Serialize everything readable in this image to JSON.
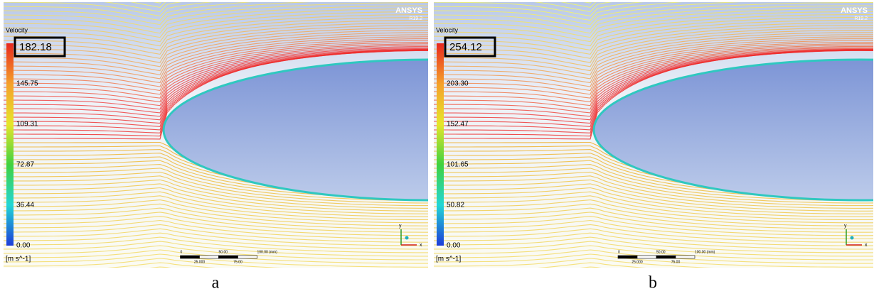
{
  "panels": [
    {
      "legend_title": "Velocity",
      "max_label": "182.18",
      "legend_ticks": [
        "145.75",
        "109.31",
        "72.87",
        "36.44",
        "0.00"
      ],
      "unit": "[m s^-1]",
      "brand": "ANSYS",
      "version": "R19.2",
      "scale_labels_top": [
        "0",
        "50.00",
        "100.00 (mm)"
      ],
      "scale_labels_bottom": [
        "25.000",
        "75.00"
      ],
      "axis_y": "y",
      "axis_x": "x",
      "caption": "a"
    },
    {
      "legend_title": "Velocity",
      "max_label": "254.12",
      "legend_ticks": [
        "203.30",
        "152.47",
        "101.65",
        "50.82",
        "0.00"
      ],
      "unit": "[m s^-1]",
      "brand": "ANSYS",
      "version": "R19.2",
      "scale_labels_top": [
        "0",
        "50.00",
        "100.00 (mm)"
      ],
      "scale_labels_bottom": [
        "25.000",
        "75.00"
      ],
      "axis_y": "y",
      "axis_x": "x",
      "caption": "b"
    }
  ]
}
